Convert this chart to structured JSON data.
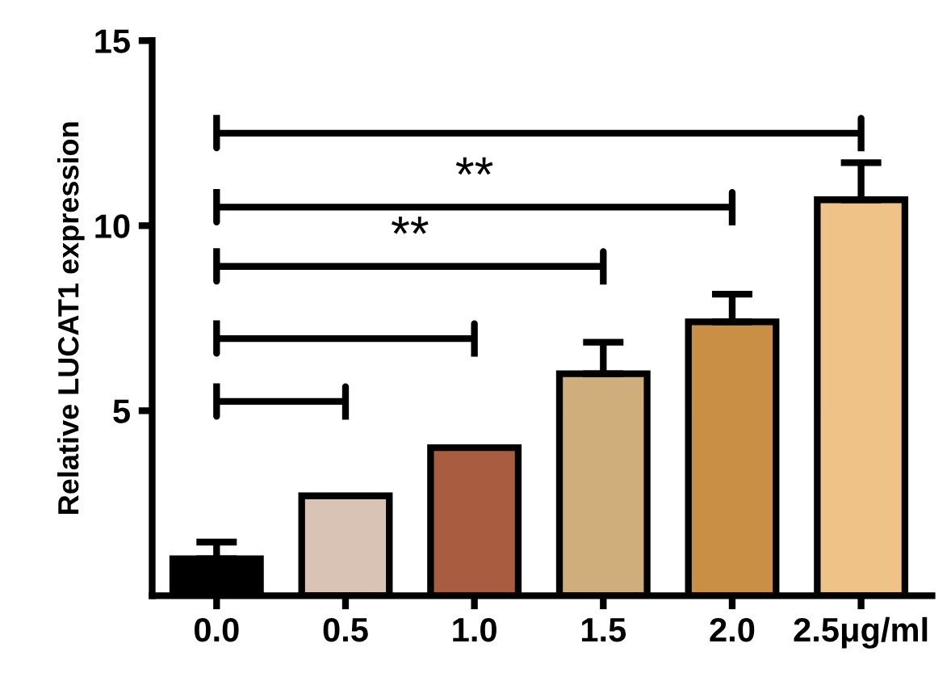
{
  "chart_data": {
    "type": "bar",
    "ylabel": "Relative LUCAT1 expression",
    "categories": [
      "0.0",
      "0.5",
      "1.0",
      "1.5",
      "2.0",
      "2.5μg/ml"
    ],
    "values": [
      1.0,
      2.7,
      4.0,
      6.0,
      7.4,
      10.7
    ],
    "errors": [
      0.45,
      null,
      null,
      0.85,
      0.75,
      1.0
    ],
    "colors": [
      "#000000",
      "#d9c3b5",
      "#a85c40",
      "#cfae7b",
      "#c98f45",
      "#efc388"
    ],
    "ylim": [
      0,
      15
    ],
    "yticks": [
      5,
      10,
      15
    ],
    "grid": false,
    "annotations": [
      "**",
      "**"
    ]
  }
}
